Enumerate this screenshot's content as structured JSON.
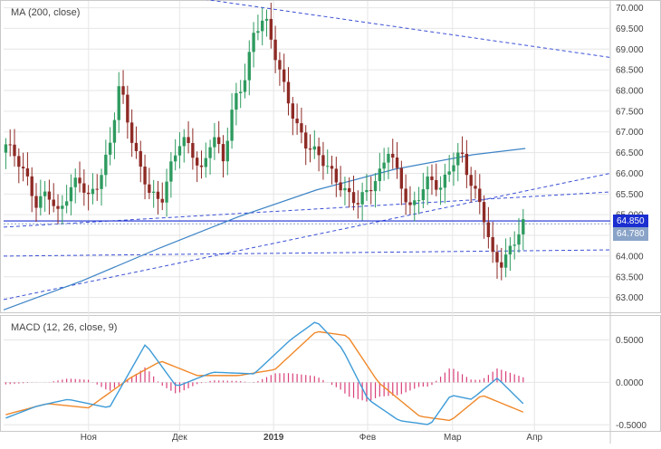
{
  "chart_data": [
    {
      "type": "candlestick",
      "indicator_label": "MA (200, close)",
      "x_ticks": [
        "Ноя",
        "Дек",
        "2019",
        "Фев",
        "Мар",
        "Апр"
      ],
      "y_ticks": [
        "70.000",
        "69.500",
        "69.000",
        "68.500",
        "68.000",
        "67.500",
        "67.000",
        "66.500",
        "66.000",
        "65.500",
        "65.000",
        "64.500",
        "64.000",
        "63.500",
        "63.000"
      ],
      "ylim": [
        62.62,
        70.1
      ],
      "price_tags": [
        {
          "text": "64.850",
          "value": 64.85,
          "color": "#1b2fd1"
        },
        {
          "text": "64.780",
          "value": 64.78,
          "color": "#8aa3c8"
        }
      ],
      "colors": {
        "up": "#2e9b5f",
        "down": "#8e2a25",
        "ma": "#3d84c6",
        "trend": "#3a4fd6",
        "grid": "#e6e6e6"
      },
      "candles_anchor_closes": [
        66.7,
        66.4,
        65.9,
        65.2,
        65.6,
        65.0,
        65.5,
        65.9,
        65.4,
        65.8,
        66.6,
        68.2,
        67.0,
        66.1,
        65.5,
        65.3,
        66.2,
        66.9,
        66.5,
        66.0,
        67.0,
        66.3,
        67.7,
        68.2,
        69.4,
        69.8,
        68.9,
        68.0,
        67.2,
        66.7,
        66.5,
        66.2,
        65.8,
        65.5,
        65.3,
        65.6,
        65.9,
        66.6,
        65.9,
        65.1,
        65.5,
        65.9,
        65.6,
        66.2,
        66.5,
        65.7,
        65.2,
        64.0,
        63.8,
        64.3,
        64.78
      ],
      "ma_200": [
        [
          0.0,
          62.7
        ],
        [
          0.15,
          63.4
        ],
        [
          0.3,
          64.2
        ],
        [
          0.45,
          64.95
        ],
        [
          0.6,
          65.6
        ],
        [
          0.75,
          66.1
        ],
        [
          0.9,
          66.45
        ],
        [
          1.0,
          66.6
        ]
      ],
      "trend_lines": [
        {
          "from": [
            0.0,
            70.9
          ],
          "to": [
            1.0,
            68.8
          ]
        },
        {
          "from": [
            0.0,
            62.95
          ],
          "to": [
            1.0,
            66.0
          ]
        },
        {
          "from": [
            0.0,
            64.7
          ],
          "to": [
            1.0,
            65.55
          ]
        },
        {
          "from": [
            0.0,
            64.0
          ],
          "to": [
            1.0,
            64.15
          ]
        }
      ],
      "horizontal_lines": [
        64.85,
        64.78
      ]
    },
    {
      "type": "line",
      "indicator_label": "MACD (12, 26, close, 9)",
      "y_ticks": [
        "0.5000",
        "0.0000",
        "-0.5000"
      ],
      "ylim": [
        -0.55,
        0.75
      ],
      "macd_anchor": [
        [
          0.0,
          -0.42
        ],
        [
          0.06,
          -0.28
        ],
        [
          0.12,
          -0.2
        ],
        [
          0.2,
          -0.3
        ],
        [
          0.27,
          0.45
        ],
        [
          0.33,
          -0.05
        ],
        [
          0.4,
          0.12
        ],
        [
          0.48,
          0.1
        ],
        [
          0.55,
          0.5
        ],
        [
          0.6,
          0.72
        ],
        [
          0.65,
          0.4
        ],
        [
          0.7,
          -0.2
        ],
        [
          0.76,
          -0.45
        ],
        [
          0.82,
          -0.5
        ],
        [
          0.86,
          -0.15
        ],
        [
          0.9,
          -0.2
        ],
        [
          0.95,
          0.05
        ],
        [
          1.0,
          -0.25
        ]
      ],
      "signal_anchor": [
        [
          0.0,
          -0.38
        ],
        [
          0.08,
          -0.25
        ],
        [
          0.16,
          -0.3
        ],
        [
          0.24,
          0.05
        ],
        [
          0.3,
          0.25
        ],
        [
          0.37,
          0.08
        ],
        [
          0.45,
          0.08
        ],
        [
          0.52,
          0.15
        ],
        [
          0.6,
          0.6
        ],
        [
          0.66,
          0.55
        ],
        [
          0.72,
          0.0
        ],
        [
          0.8,
          -0.4
        ],
        [
          0.86,
          -0.45
        ],
        [
          0.92,
          -0.15
        ],
        [
          1.0,
          -0.35
        ]
      ],
      "colors": {
        "macd": "#3d9bd8",
        "signal": "#f0882a",
        "hist": "#d9407a"
      }
    }
  ]
}
